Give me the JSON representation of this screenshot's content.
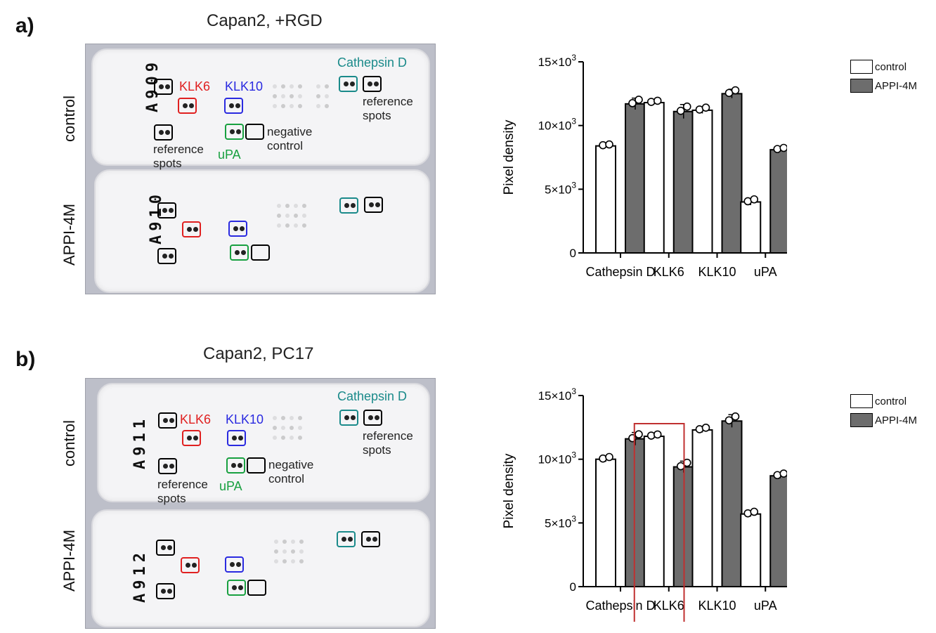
{
  "panels": [
    {
      "letter": "a)",
      "title": "Capan2, +RGD",
      "blot": {
        "row1_label": "control",
        "row2_label": "APPI-4M",
        "labels": {
          "klk6": "KLK6",
          "klk10": "KLK10",
          "cathepsin": "Cathepsin D",
          "upa": "uPA",
          "reference_left_1": "reference",
          "reference_left_2": "spots",
          "reference_right_1": "reference",
          "reference_right_2": "spots",
          "negative_1": "negative",
          "negative_2": "control"
        },
        "membrane_ids": [
          "A909",
          "A910"
        ]
      },
      "chart_data": {
        "type": "bar",
        "categories": [
          "Cathepsin D",
          "KLK6",
          "KLK10",
          "uPA"
        ],
        "series": [
          {
            "name": "control",
            "values": [
              8400,
              11800,
              11200,
              4000
            ],
            "error": [
              100,
              150,
              250,
              250
            ]
          },
          {
            "name": "APPI-4M",
            "values": [
              11700,
              11100,
              12500,
              8100
            ],
            "error": [
              450,
              550,
              350,
              150
            ]
          }
        ],
        "ylabel": "Pixel density",
        "ylim": [
          0,
          15000
        ],
        "yticks": [
          "0",
          "5×10",
          "10×10",
          "15×10"
        ],
        "ytick_values": [
          0,
          5000,
          10000,
          15000
        ],
        "ytick_exp": "3",
        "legend_position": "top-right"
      }
    },
    {
      "letter": "b)",
      "title": "Capan2, PC17",
      "blot": {
        "row1_label": "control",
        "row2_label": "APPI-4M",
        "labels": {
          "klk6": "KLK6",
          "klk10": "KLK10",
          "cathepsin": "Cathepsin D",
          "upa": "uPA",
          "reference_left_1": "reference",
          "reference_left_2": "spots",
          "reference_right_1": "reference",
          "reference_right_2": "spots",
          "negative_1": "negative",
          "negative_2": "control"
        },
        "membrane_ids": [
          "A911",
          "A912"
        ]
      },
      "chart_data": {
        "type": "bar",
        "categories": [
          "Cathepsin D",
          "KLK6",
          "KLK10",
          "uPA"
        ],
        "series": [
          {
            "name": "control",
            "values": [
              10000,
              11800,
              12300,
              5700
            ],
            "error": [
              200,
              150,
              200,
              200
            ]
          },
          {
            "name": "APPI-4M",
            "values": [
              11600,
              9400,
              13000,
              8700
            ],
            "error": [
              500,
              450,
              500,
              200
            ]
          }
        ],
        "ylabel": "Pixel density",
        "ylim": [
          0,
          15000
        ],
        "yticks": [
          "0",
          "5×10",
          "10×10",
          "15×10"
        ],
        "ytick_values": [
          0,
          5000,
          10000,
          15000
        ],
        "ytick_exp": "3",
        "legend_position": "top-right",
        "highlight_category": "KLK6"
      }
    }
  ],
  "colors": {
    "control_fill": "#ffffff",
    "appi_fill": "#6d6d6d",
    "highlight": "#c03030",
    "bar_stroke": "#000000"
  }
}
